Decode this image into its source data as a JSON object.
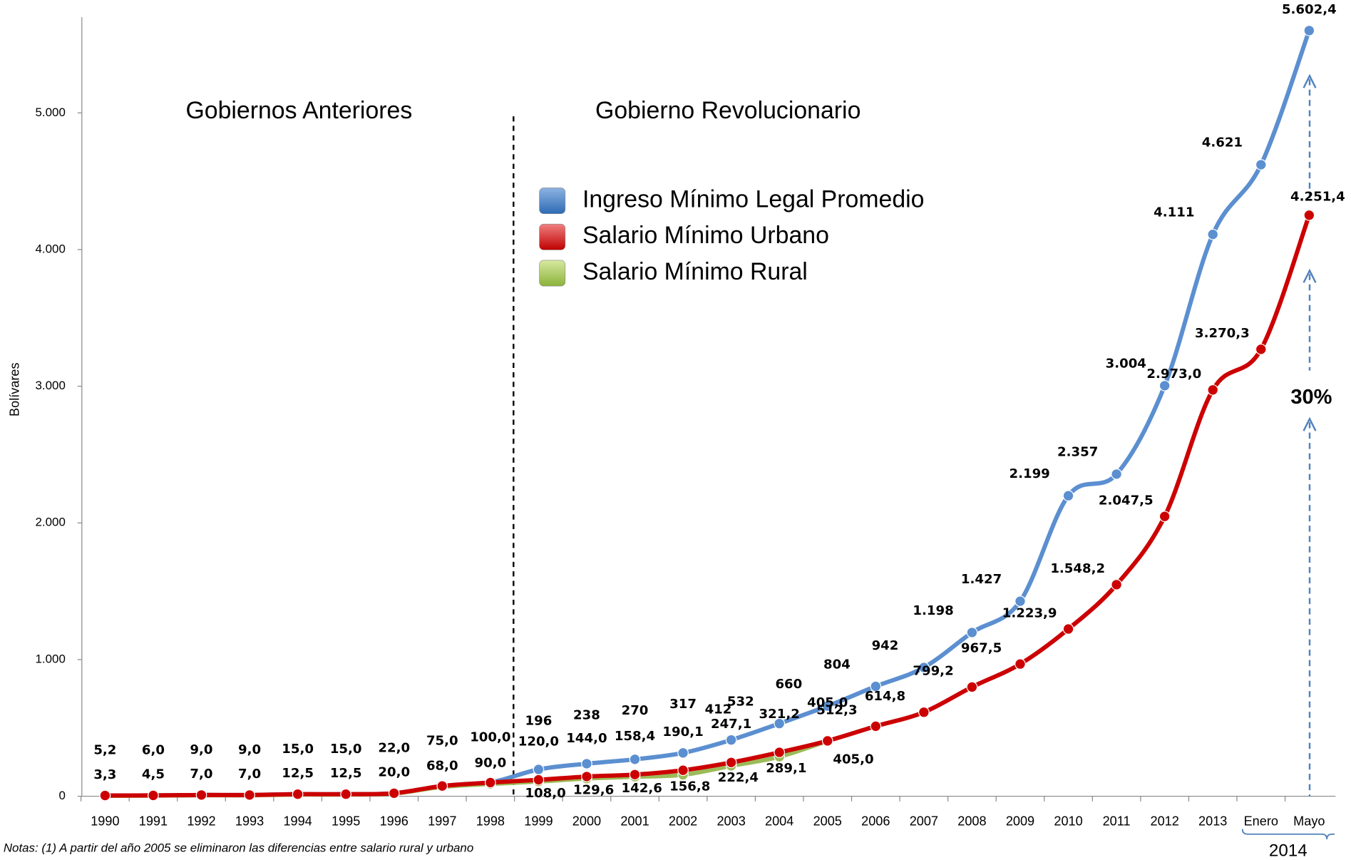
{
  "chart_data": {
    "type": "line",
    "y_label": "Bolívares",
    "categories": [
      "1990",
      "1991",
      "1992",
      "1993",
      "1994",
      "1995",
      "1996",
      "1997",
      "1998",
      "1999",
      "2000",
      "2001",
      "2002",
      "2003",
      "2004",
      "2005",
      "2006",
      "2007",
      "2008",
      "2009",
      "2010",
      "2011",
      "2012",
      "2013",
      "Enero",
      "Mayo"
    ],
    "category_group": "2014",
    "ylim": [
      0,
      5700
    ],
    "yticks": [
      0,
      {
        "value": 1000,
        "label": "1.000"
      },
      {
        "value": 2000,
        "label": "2.000"
      },
      {
        "value": 3000,
        "label": "3.000"
      },
      {
        "value": 4000,
        "label": "4.000"
      },
      {
        "value": 5000,
        "label": "5.000"
      }
    ],
    "series": [
      {
        "name": "Ingreso Mínimo Legal Promedio",
        "color": "#5b8fd0",
        "label_color": "#4f81bd",
        "values": [
          5.2,
          6.0,
          9.0,
          9.0,
          15.0,
          15.0,
          22.0,
          75.0,
          100.0,
          196,
          238,
          270,
          317,
          412,
          532,
          660,
          804,
          942,
          1198,
          1427,
          2199,
          2357,
          3004,
          4111,
          4621,
          5602.4
        ],
        "value_labels": [
          null,
          null,
          null,
          null,
          null,
          null,
          null,
          null,
          null,
          "196",
          "238",
          "270",
          "317",
          "412",
          "532",
          "660",
          "804",
          "942",
          "1.198",
          "1.427",
          "2.199",
          "2.357",
          "3.004",
          "4.111",
          "4.621",
          "5.602,4"
        ]
      },
      {
        "name": "Salario Mínimo Rural",
        "color": "#9bbb59",
        "label_color": "#77933c",
        "values": [
          3.3,
          4.5,
          7.0,
          7.0,
          12.5,
          12.5,
          20.0,
          68.0,
          90.0,
          108.0,
          129.6,
          142.6,
          156.8,
          222.4,
          289.1,
          405.0,
          null,
          null,
          null,
          null,
          null,
          null,
          null,
          null,
          null,
          null
        ],
        "value_labels": [
          "3,3",
          "4,5",
          "7,0",
          "7,0",
          "12,5",
          "12,5",
          "20,0",
          "68,0",
          "90,0",
          "108,0",
          "129,6",
          "142,6",
          "156,8",
          "222,4",
          "289,1",
          "405,0",
          null,
          null,
          null,
          null,
          null,
          null,
          null,
          null,
          null,
          null
        ]
      },
      {
        "name": "Salario Mínimo Urbano",
        "color": "#cc0000",
        "label_color": "#c00000",
        "values": [
          5.2,
          6.0,
          9.0,
          9.0,
          15.0,
          15.0,
          22.0,
          75.0,
          100.0,
          120.0,
          144.0,
          158.4,
          190.1,
          247.1,
          321.2,
          405.0,
          512.3,
          614.8,
          799.2,
          967.5,
          1223.9,
          1548.2,
          2047.5,
          2973.0,
          3270.3,
          4251.4
        ],
        "value_labels": [
          "5,2",
          "6,0",
          "9,0",
          "9,0",
          "15,0",
          "15,0",
          "22,0",
          "75,0",
          "100,0",
          "120,0",
          "144,0",
          "158,4",
          "190,1",
          "247,1",
          "321,2",
          "405,0",
          "512,3",
          "614,8",
          "799,2",
          "967,5",
          "1.223,9",
          "1.548,2",
          "2.047,5",
          "2.973,0",
          "3.270,3",
          "4.251,4"
        ]
      }
    ],
    "annotations": [
      "Gobiernos Anteriores",
      "Gobierno Revolucionario",
      "30%"
    ],
    "note": "Notas: (1) A partir del año 2005 se eliminaron las diferencias entre salario rural y urbano"
  }
}
